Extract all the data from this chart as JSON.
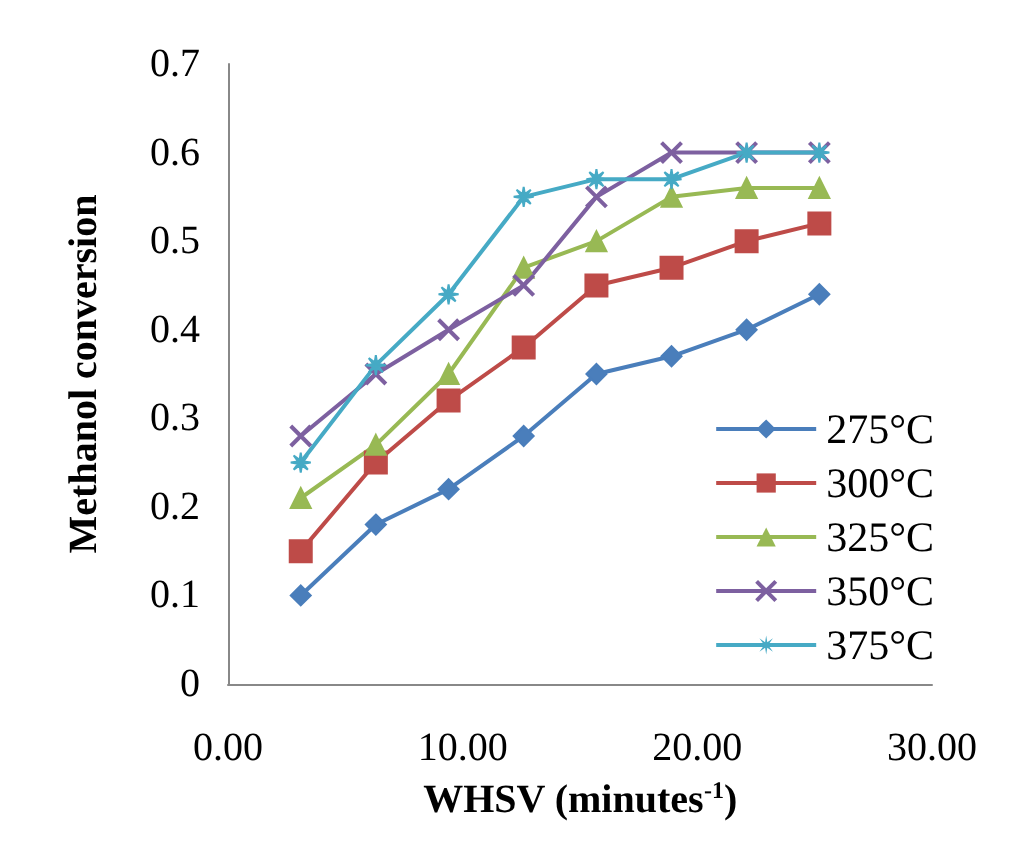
{
  "chart_data": {
    "type": "line",
    "xlabel": "WHSV (minutes$^{-1}$)",
    "ylabel": "Methanol conversion",
    "x": [
      3.1,
      6.3,
      9.4,
      12.6,
      15.7,
      18.9,
      22.1,
      25.2
    ],
    "xlim": [
      0,
      30
    ],
    "xticks": [
      {
        "value": 0,
        "label": "0.00"
      },
      {
        "value": 10,
        "label": "10.00"
      },
      {
        "value": 20,
        "label": "20.00"
      },
      {
        "value": 30,
        "label": "30.00"
      }
    ],
    "ylim": [
      0,
      0.7
    ],
    "yticks": [
      0,
      0.1,
      0.2,
      0.3,
      0.4,
      0.5,
      0.6,
      0.7
    ],
    "grid": false,
    "legend": "bottom right",
    "line_style": "solid",
    "series": [
      {
        "name": "275°C",
        "color": "#4a7ebb",
        "marker": "diamond",
        "values": [
          0.1,
          0.18,
          0.22,
          0.28,
          0.35,
          0.37,
          0.4,
          0.44
        ]
      },
      {
        "name": "300°C",
        "color": "#be4b48",
        "marker": "square",
        "values": [
          0.15,
          0.25,
          0.32,
          0.38,
          0.45,
          0.47,
          0.5,
          0.52
        ]
      },
      {
        "name": "325°C",
        "color": "#98b954",
        "marker": "triangle",
        "values": [
          0.21,
          0.27,
          0.35,
          0.47,
          0.5,
          0.55,
          0.56,
          0.56
        ]
      },
      {
        "name": "350°C",
        "color": "#7d60a0",
        "marker": "cross",
        "values": [
          0.28,
          0.35,
          0.4,
          0.45,
          0.55,
          0.6,
          0.6,
          0.6
        ]
      },
      {
        "name": "375°C",
        "color": "#46aac5",
        "marker": "star",
        "values": [
          0.25,
          0.36,
          0.44,
          0.55,
          0.57,
          0.57,
          0.6,
          0.6
        ]
      }
    ]
  }
}
